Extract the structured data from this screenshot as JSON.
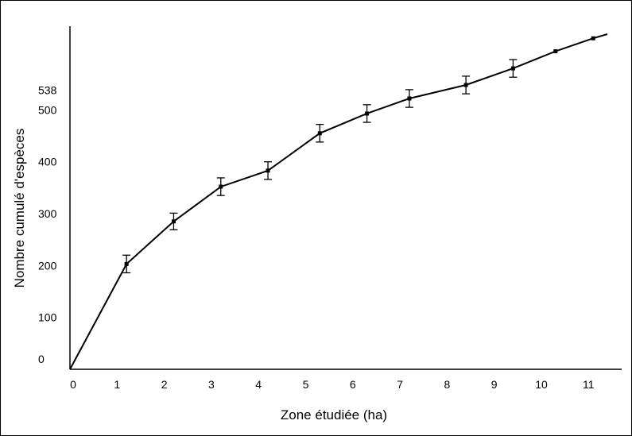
{
  "chart_data": {
    "type": "line",
    "title": "",
    "xlabel": "Zone étudiée (ha)",
    "ylabel": "Nombre cumulé d'espèces",
    "x_ticks": [
      "0",
      "1",
      "2",
      "3",
      "4",
      "5",
      "6",
      "7",
      "8",
      "9",
      "10",
      "11"
    ],
    "y_ticks": [
      "0",
      "100",
      "200",
      "300",
      "400",
      "500",
      "538"
    ],
    "series": [
      {
        "points": [
          {
            "x": 0,
            "y": 0,
            "err": 0
          },
          {
            "x": 1.2,
            "y": 203,
            "err": 17
          },
          {
            "x": 2.2,
            "y": 285,
            "err": 16
          },
          {
            "x": 3.2,
            "y": 352,
            "err": 17
          },
          {
            "x": 4.2,
            "y": 383,
            "err": 17
          },
          {
            "x": 5.3,
            "y": 455,
            "err": 17
          },
          {
            "x": 6.3,
            "y": 493,
            "err": 17
          },
          {
            "x": 7.2,
            "y": 522,
            "err": 17
          },
          {
            "x": 8.4,
            "y": 548,
            "err": 17
          },
          {
            "x": 9.4,
            "y": 580,
            "err": 17
          },
          {
            "x": 10.3,
            "y": 613,
            "err": 0
          },
          {
            "x": 11.1,
            "y": 638,
            "err": 0
          },
          {
            "x": 11.4,
            "y": 646,
            "err": 0
          }
        ]
      }
    ],
    "xlim": [
      0,
      11.4
    ],
    "ylim": [
      0,
      646
    ],
    "grid": false,
    "line_color": "#000000"
  }
}
